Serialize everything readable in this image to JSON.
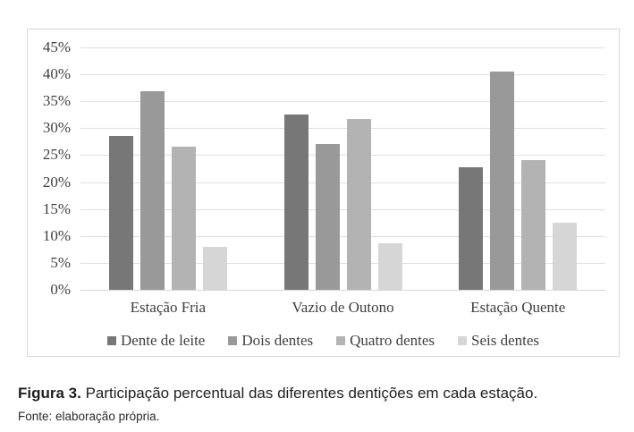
{
  "figure": {
    "label": "Figura 3.",
    "caption": " Participação percentual das diferentes dentições em cada estação.",
    "source": "Fonte: elaboração própria."
  },
  "chart_data": {
    "type": "bar",
    "title": "",
    "xlabel": "",
    "ylabel": "",
    "categories": [
      "Estação Fria",
      "Vazio de Outono",
      "Estação Quente"
    ],
    "series": [
      {
        "name": "Dente de leite",
        "color": "#777777",
        "values": [
          28.5,
          32.5,
          22.7
        ]
      },
      {
        "name": "Dois dentes",
        "color": "#999999",
        "values": [
          36.8,
          27.0,
          40.5
        ]
      },
      {
        "name": "Quatro dentes",
        "color": "#b3b3b3",
        "values": [
          26.5,
          31.8,
          24.0
        ]
      },
      {
        "name": "Seis dentes",
        "color": "#d6d6d6",
        "values": [
          8.0,
          8.7,
          12.5
        ]
      }
    ],
    "ylim": [
      0,
      45
    ],
    "ytick_step": 5,
    "yticks": [
      "45%",
      "40%",
      "35%",
      "30%",
      "25%",
      "20%",
      "15%",
      "10%",
      "5%",
      "0%"
    ],
    "grid": "horizontal-light-gray",
    "legend_position": "bottom-center",
    "frame_border_color": "#d9d9d9",
    "gridline_color": "#e0e0e0",
    "text_color": "#3f3f3f"
  }
}
